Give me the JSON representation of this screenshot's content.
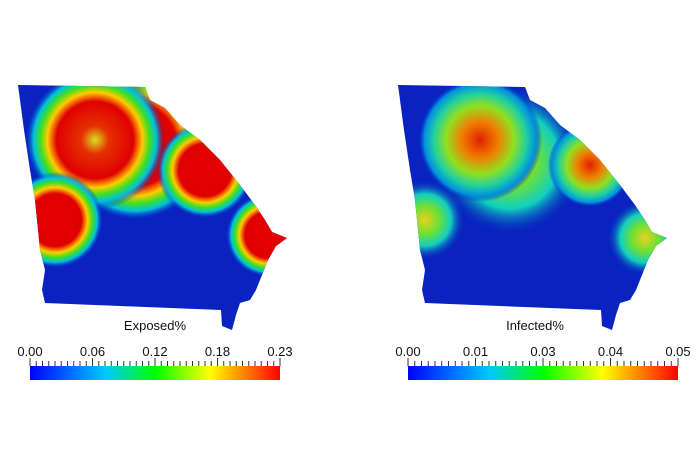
{
  "maps": [
    {
      "title": "Exposed%",
      "colorbar": {
        "ticks": [
          "0.00",
          "0.06",
          "0.12",
          "0.18",
          "0.23"
        ]
      }
    },
    {
      "title": "Infected%",
      "colorbar": {
        "ticks": [
          "0.00",
          "0.01",
          "0.03",
          "0.04",
          "0.05"
        ]
      }
    }
  ]
}
